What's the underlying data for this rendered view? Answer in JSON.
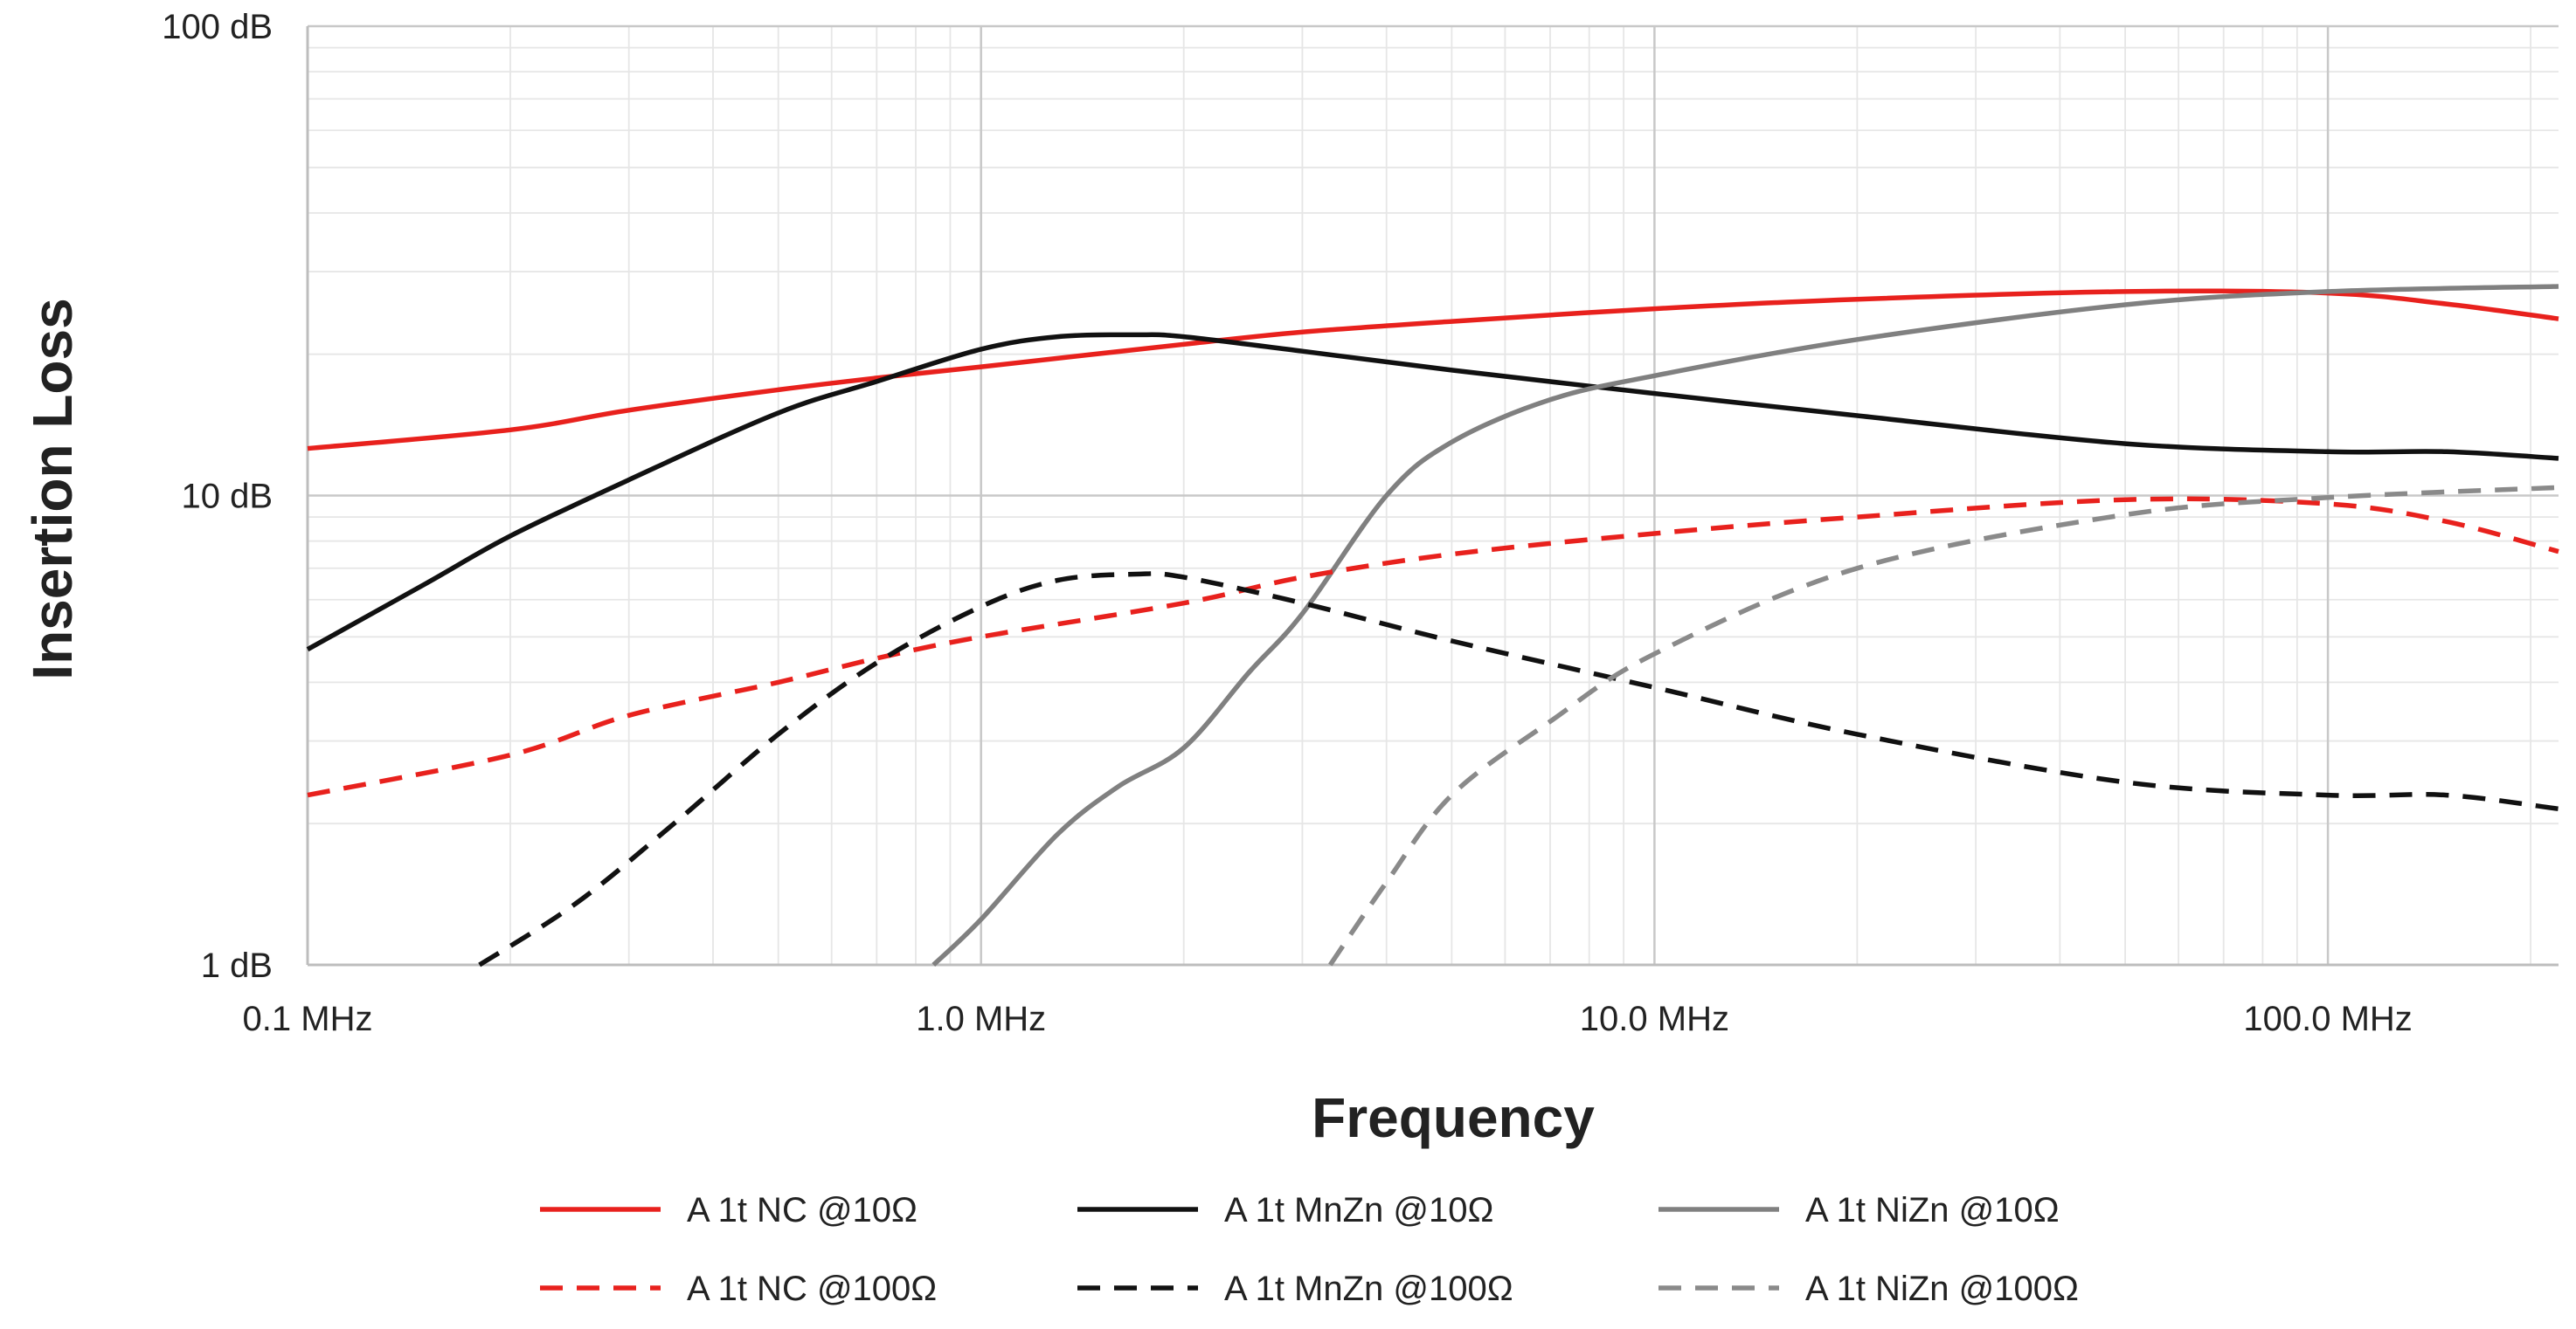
{
  "chart_data": {
    "type": "line",
    "title": "",
    "xlabel": "Frequency",
    "ylabel": "Insertion Loss",
    "xscale": "log",
    "yscale": "log",
    "xlim": [
      0.1,
      220
    ],
    "ylim": [
      1,
      100
    ],
    "grid": true,
    "legend_position": "bottom",
    "x_tick_labels": [
      "0.1 MHz",
      "1.0 MHz",
      "10.0 MHz",
      "100.0 MHz"
    ],
    "y_tick_labels": [
      "1 dB",
      "10 dB",
      "100 dB"
    ],
    "series": [
      {
        "name": "A 1t NC @10Ω",
        "color": "#e8211d",
        "dash": "solid",
        "points": [
          [
            0.1,
            12.6
          ],
          [
            0.2,
            13.8
          ],
          [
            0.3,
            15.2
          ],
          [
            0.5,
            16.8
          ],
          [
            0.7,
            17.8
          ],
          [
            1.0,
            18.8
          ],
          [
            2.0,
            21.0
          ],
          [
            3.0,
            22.3
          ],
          [
            5.0,
            23.5
          ],
          [
            10,
            25.0
          ],
          [
            20,
            26.2
          ],
          [
            50,
            27.2
          ],
          [
            100,
            27.0
          ],
          [
            150,
            25.6
          ],
          [
            220,
            23.8
          ]
        ]
      },
      {
        "name": "A 1t MnZn @10Ω",
        "color": "#111111",
        "dash": "solid",
        "points": [
          [
            0.1,
            4.7
          ],
          [
            0.15,
            6.5
          ],
          [
            0.2,
            8.2
          ],
          [
            0.3,
            10.8
          ],
          [
            0.5,
            15.0
          ],
          [
            0.7,
            17.5
          ],
          [
            1.0,
            20.5
          ],
          [
            1.3,
            21.8
          ],
          [
            1.7,
            22.0
          ],
          [
            2.0,
            21.8
          ],
          [
            3.0,
            20.3
          ],
          [
            5.0,
            18.5
          ],
          [
            10,
            16.5
          ],
          [
            20,
            14.8
          ],
          [
            50,
            12.9
          ],
          [
            100,
            12.4
          ],
          [
            150,
            12.4
          ],
          [
            220,
            12.0
          ]
        ]
      },
      {
        "name": "A 1t NiZn @10Ω",
        "color": "#808080",
        "dash": "solid",
        "points": [
          [
            0.85,
            1.0
          ],
          [
            1.0,
            1.25
          ],
          [
            1.3,
            1.9
          ],
          [
            1.6,
            2.4
          ],
          [
            2.0,
            2.9
          ],
          [
            2.5,
            4.2
          ],
          [
            3.0,
            5.6
          ],
          [
            4.0,
            10.0
          ],
          [
            5.0,
            13.0
          ],
          [
            7.0,
            16.0
          ],
          [
            10,
            18.0
          ],
          [
            20,
            21.5
          ],
          [
            50,
            25.5
          ],
          [
            100,
            27.2
          ],
          [
            220,
            27.9
          ]
        ]
      },
      {
        "name": "A 1t NC @100Ω",
        "color": "#e8211d",
        "dash": "dashed",
        "points": [
          [
            0.1,
            2.3
          ],
          [
            0.2,
            2.8
          ],
          [
            0.3,
            3.4
          ],
          [
            0.5,
            4.0
          ],
          [
            0.7,
            4.5
          ],
          [
            1.0,
            5.0
          ],
          [
            2.0,
            5.9
          ],
          [
            3.0,
            6.7
          ],
          [
            5.0,
            7.5
          ],
          [
            10,
            8.3
          ],
          [
            20,
            9.0
          ],
          [
            50,
            9.8
          ],
          [
            100,
            9.6
          ],
          [
            150,
            8.8
          ],
          [
            220,
            7.6
          ]
        ]
      },
      {
        "name": "A 1t MnZn @100Ω",
        "color": "#111111",
        "dash": "dashed",
        "points": [
          [
            0.18,
            1.0
          ],
          [
            0.25,
            1.35
          ],
          [
            0.35,
            2.0
          ],
          [
            0.5,
            3.1
          ],
          [
            0.7,
            4.4
          ],
          [
            1.0,
            5.8
          ],
          [
            1.3,
            6.6
          ],
          [
            1.7,
            6.8
          ],
          [
            2.0,
            6.7
          ],
          [
            3.0,
            5.9
          ],
          [
            5.0,
            4.9
          ],
          [
            10,
            3.9
          ],
          [
            20,
            3.1
          ],
          [
            50,
            2.45
          ],
          [
            100,
            2.3
          ],
          [
            150,
            2.3
          ],
          [
            220,
            2.15
          ]
        ]
      },
      {
        "name": "A 1t NiZn @100Ω",
        "color": "#8a8a8a",
        "dash": "dashed",
        "points": [
          [
            3.3,
            1.0
          ],
          [
            4.0,
            1.5
          ],
          [
            5.0,
            2.3
          ],
          [
            7.0,
            3.3
          ],
          [
            10,
            4.6
          ],
          [
            20,
            7.0
          ],
          [
            50,
            9.1
          ],
          [
            100,
            9.9
          ],
          [
            220,
            10.4
          ]
        ]
      }
    ]
  }
}
